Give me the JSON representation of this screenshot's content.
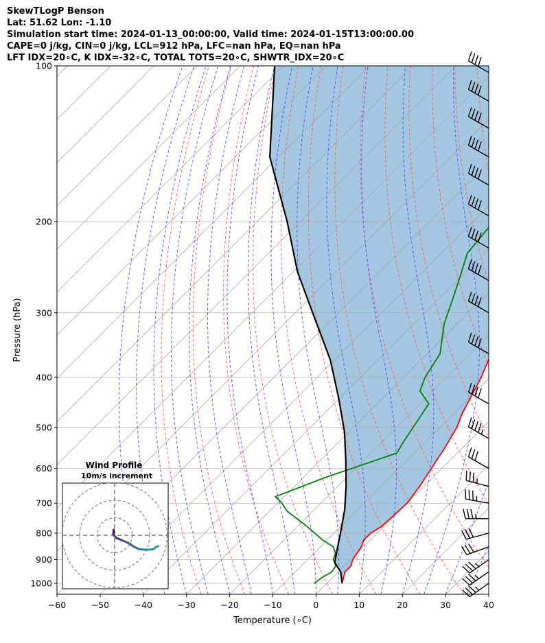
{
  "header": {
    "line1": "SkewTLogP Benson",
    "line2": "Lat: 51.62   Lon: -1.10",
    "line3": "Simulation start time: 2024-01-13_00:00:00, Valid time: 2024-01-15T13:00:00.00",
    "line4": "CAPE=0 j/kg, CIN=0 j/kg, LCL=912 hPa, LFC=nan hPa, EQ=nan hPa",
    "line5": "LFT IDX=20∘C, K IDX=-32∘C, TOTAL TOTS=20∘C, SHWTR_IDX=20∘C"
  },
  "chart_data": {
    "type": "line",
    "title": "SkewTLogP Benson",
    "xlabel": "Temperature (∘C)",
    "ylabel": "Pressure (hPa)",
    "xlim": [
      -60,
      40
    ],
    "ylim": [
      1050,
      100
    ],
    "y_scale": "log",
    "x_ticks": [
      "−60",
      "−50",
      "−40",
      "−30",
      "−20",
      "−10",
      "0",
      "10",
      "20",
      "30",
      "40"
    ],
    "y_ticks": [
      "100",
      "200",
      "300",
      "400",
      "500",
      "600",
      "700",
      "800",
      "900",
      "1000"
    ],
    "grid": true,
    "series": [
      {
        "kind": "temperature",
        "color": "#ff0000",
        "points": [
          [
            3.5,
            1000
          ],
          [
            1.5,
            950
          ],
          [
            1.5,
            925
          ],
          [
            0.5,
            900
          ],
          [
            -0.5,
            850
          ],
          [
            -1.5,
            825
          ],
          [
            -1.5,
            800
          ],
          [
            -0.5,
            775
          ],
          [
            0,
            700
          ],
          [
            -1,
            650
          ],
          [
            -4,
            550
          ],
          [
            -6,
            500
          ],
          [
            -8,
            470
          ],
          [
            -12,
            400
          ],
          [
            -16,
            350
          ],
          [
            -21,
            300
          ],
          [
            -25,
            265
          ],
          [
            -29,
            230
          ],
          [
            -34,
            200
          ],
          [
            -39,
            185
          ],
          [
            -45,
            165
          ],
          [
            -48,
            150
          ],
          [
            -52,
            130
          ],
          [
            -54,
            115
          ],
          [
            -55,
            100
          ]
        ]
      },
      {
        "kind": "dewpoint",
        "color": "#008000",
        "points": [
          [
            -3,
            1000
          ],
          [
            -2.5,
            975
          ],
          [
            -1.5,
            950
          ],
          [
            -2,
            925
          ],
          [
            -4,
            900
          ],
          [
            -5,
            875
          ],
          [
            -7,
            850
          ],
          [
            -11,
            825
          ],
          [
            -18,
            775
          ],
          [
            -26,
            725
          ],
          [
            -29,
            700
          ],
          [
            -32,
            680
          ],
          [
            -25,
            625
          ],
          [
            -14,
            560
          ],
          [
            -15,
            535
          ],
          [
            -18,
            450
          ],
          [
            -23,
            425
          ],
          [
            -25,
            400
          ],
          [
            -27,
            360
          ],
          [
            -33,
            315
          ],
          [
            -37,
            280
          ],
          [
            -41,
            250
          ],
          [
            -44,
            230
          ],
          [
            -45,
            205
          ],
          [
            -47,
            185
          ],
          [
            -53,
            165
          ],
          [
            -61,
            150
          ],
          [
            -63,
            130
          ],
          [
            -62,
            100
          ]
        ]
      },
      {
        "kind": "parcel",
        "color": "#000000",
        "points": [
          [
            3.5,
            1000
          ],
          [
            0.5,
            950
          ],
          [
            -3,
            912
          ],
          [
            -5.5,
            860
          ],
          [
            -8.5,
            800
          ],
          [
            -13,
            720
          ],
          [
            -18,
            650
          ],
          [
            -24,
            580
          ],
          [
            -31,
            510
          ],
          [
            -40,
            440
          ],
          [
            -51,
            370
          ],
          [
            -66,
            300
          ],
          [
            -79,
            250
          ],
          [
            -93,
            200
          ],
          [
            -112,
            150
          ],
          [
            -132,
            100
          ]
        ]
      }
    ],
    "wind_barbs": [
      {
        "p": 1000,
        "speed_kt": 25,
        "dir_deg": 235
      },
      {
        "p": 950,
        "speed_kt": 25,
        "dir_deg": 235
      },
      {
        "p": 900,
        "speed_kt": 25,
        "dir_deg": 235
      },
      {
        "p": 850,
        "speed_kt": 30,
        "dir_deg": 250
      },
      {
        "p": 800,
        "speed_kt": 30,
        "dir_deg": 255
      },
      {
        "p": 750,
        "speed_kt": 25,
        "dir_deg": 270
      },
      {
        "p": 700,
        "speed_kt": 25,
        "dir_deg": 280
      },
      {
        "p": 650,
        "speed_kt": 25,
        "dir_deg": 285
      },
      {
        "p": 600,
        "speed_kt": 30,
        "dir_deg": 300
      },
      {
        "p": 525,
        "speed_kt": 35,
        "dir_deg": 300
      },
      {
        "p": 450,
        "speed_kt": 40,
        "dir_deg": 300
      },
      {
        "p": 360,
        "speed_kt": 40,
        "dir_deg": 300
      },
      {
        "p": 300,
        "speed_kt": 40,
        "dir_deg": 300
      },
      {
        "p": 260,
        "speed_kt": 40,
        "dir_deg": 300
      },
      {
        "p": 225,
        "speed_kt": 40,
        "dir_deg": 300
      },
      {
        "p": 195,
        "speed_kt": 40,
        "dir_deg": 300
      },
      {
        "p": 170,
        "speed_kt": 40,
        "dir_deg": 300
      },
      {
        "p": 150,
        "speed_kt": 40,
        "dir_deg": 300
      },
      {
        "p": 132,
        "speed_kt": 40,
        "dir_deg": 300
      },
      {
        "p": 117,
        "speed_kt": 40,
        "dir_deg": 300
      },
      {
        "p": 103,
        "speed_kt": 40,
        "dir_deg": 300
      }
    ],
    "hodograph": {
      "title_line1": "Wind Profile",
      "title_line2": "10m/s increment",
      "rings": [
        10,
        20,
        30
      ],
      "points": [
        [
          -0.6,
          3.2
        ],
        [
          -0.5,
          2.0
        ],
        [
          -0.8,
          0.5
        ],
        [
          1,
          -1.5
        ],
        [
          4,
          -2.8
        ],
        [
          8,
          -4.5
        ],
        [
          11,
          -6.5
        ],
        [
          14,
          -8
        ],
        [
          19,
          -8.3
        ],
        [
          22,
          -8
        ],
        [
          24,
          -6.5
        ],
        [
          25,
          -6.2
        ]
      ]
    }
  }
}
